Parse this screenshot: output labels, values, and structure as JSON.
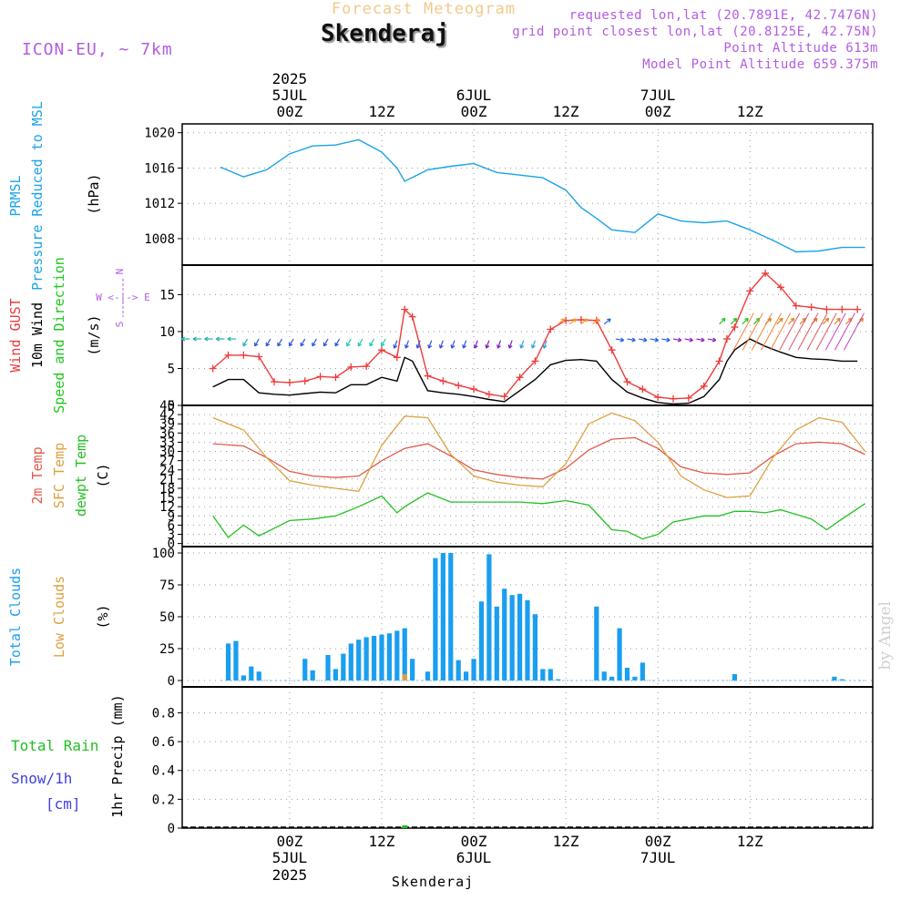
{
  "header": {
    "title": "Forecast Meteogram",
    "station": "Skenderaj",
    "model": "ICON-EU, ~ 7km",
    "requested": "requested lon,lat (20.7891E, 42.7476N)",
    "gridpoint": "grid point closest lon,lat (20.8125E, 42.75N)",
    "point_altitude": "Point Altitude 613m",
    "model_altitude": "Model Point Altitude 659.375m"
  },
  "signature": "by Angel",
  "colors": {
    "pressure": "#1aa3e8",
    "gust": "#ee3b3b",
    "wind": "#000000",
    "arrows": "#1ec81e",
    "t2m": "#e05a4a",
    "tsfc": "#dca040",
    "dewpt": "#22c022",
    "clouds": "#1a9ef0",
    "low_clouds": "#dca040",
    "rain": "#22c022",
    "snow": "#4040e0",
    "label_purple": "#b35ce0"
  },
  "time_axis": {
    "top_row1": [
      "2025"
    ],
    "top_row2": [
      "5JUL",
      "6JUL",
      "7JUL"
    ],
    "top_row3": [
      "00Z",
      "12Z",
      "00Z",
      "12Z",
      "00Z",
      "12Z"
    ],
    "bottom_row1": [
      "00Z",
      "12Z",
      "00Z",
      "12Z",
      "00Z",
      "12Z"
    ],
    "bottom_row2": [
      "5JUL",
      "6JUL",
      "7JUL"
    ],
    "bottom_row3": [
      "2025"
    ],
    "footer": "Skenderaj"
  },
  "panel_labels": {
    "pressure": [
      "PRMSL",
      "Pressure Reduced to MSL"
    ],
    "pressure_unit": "(hPa)",
    "wind": [
      "Wind GUST",
      "10m Wind",
      "Speed and Direction"
    ],
    "wind_unit": "(m/s)",
    "compass": [
      "N",
      "W <-|-> E",
      "S"
    ],
    "temp": [
      "2m Temp",
      "SFC Temp",
      "dewpt Temp"
    ],
    "temp_unit": "(C)",
    "clouds": [
      "Total Clouds",
      "Low Clouds"
    ],
    "clouds_unit": "(%)",
    "precip": [
      "Total  Rain",
      "Snow/1h",
      "[cm]"
    ],
    "precip_unit": "1hr Precip (mm)"
  },
  "chart_data": [
    {
      "type": "line",
      "name": "pressure",
      "ylabel": "(hPa)",
      "ylim": [
        1005,
        1021
      ],
      "yticks": [
        "1008",
        "1012",
        "1016",
        "1020"
      ],
      "series": [
        {
          "name": "PRMSL",
          "x": [
            -9,
            -6,
            -3,
            0,
            3,
            6,
            9,
            12,
            14,
            15,
            18,
            21,
            24,
            27,
            30,
            33,
            36,
            38,
            40,
            42,
            45,
            48,
            51,
            54,
            57,
            60,
            63,
            66,
            69,
            72,
            75
          ],
          "y": [
            1016.1,
            1015.0,
            1015.8,
            1017.6,
            1018.5,
            1018.6,
            1019.2,
            1017.8,
            1016.0,
            1014.5,
            1015.8,
            1016.2,
            1016.5,
            1015.5,
            1015.2,
            1014.9,
            1013.5,
            1011.5,
            1010.3,
            1009.0,
            1008.7,
            1010.8,
            1010.0,
            1009.8,
            1010.0,
            1009.0,
            1007.8,
            1006.5,
            1006.6,
            1007.0,
            1007.0
          ]
        }
      ]
    },
    {
      "type": "line",
      "name": "wind",
      "ylabel": "(m/s)",
      "ylim": [
        0,
        19
      ],
      "yticks": [
        "0",
        "5",
        "10",
        "15"
      ],
      "series": [
        {
          "name": "Wind GUST",
          "x": [
            -10,
            -8,
            -6,
            -4,
            -2,
            0,
            2,
            4,
            6,
            8,
            10,
            12,
            14,
            15,
            16,
            18,
            20,
            22,
            24,
            26,
            28,
            30,
            32,
            34,
            36,
            38,
            40,
            42,
            44,
            46,
            48,
            50,
            52,
            54,
            56,
            57,
            58,
            60,
            62,
            64,
            66,
            68,
            70,
            72,
            74
          ],
          "y": [
            5.0,
            6.8,
            6.8,
            6.6,
            3.2,
            3.1,
            3.3,
            3.9,
            3.8,
            5.2,
            5.3,
            7.5,
            6.5,
            13.0,
            12.0,
            4.0,
            3.3,
            2.7,
            2.2,
            1.5,
            1.2,
            3.8,
            6.0,
            10.3,
            11.5,
            11.6,
            11.5,
            7.5,
            3.2,
            2.2,
            1.1,
            0.9,
            1.0,
            2.6,
            6.0,
            9.0,
            10.6,
            15.5,
            17.9,
            16.0,
            13.5,
            13.3,
            13.0,
            13.0,
            13.0
          ]
        },
        {
          "name": "10m Wind",
          "x": [
            -10,
            -8,
            -6,
            -4,
            -2,
            0,
            2,
            4,
            6,
            8,
            10,
            12,
            14,
            15,
            16,
            18,
            20,
            22,
            24,
            26,
            28,
            30,
            32,
            34,
            36,
            38,
            40,
            42,
            44,
            46,
            48,
            50,
            52,
            54,
            56,
            57,
            58,
            60,
            62,
            64,
            66,
            68,
            70,
            72,
            74
          ],
          "y": [
            2.5,
            3.5,
            3.5,
            1.7,
            1.5,
            1.4,
            1.6,
            1.8,
            1.7,
            2.8,
            2.8,
            3.8,
            3.3,
            6.5,
            6.0,
            2.0,
            1.7,
            1.5,
            1.2,
            0.8,
            0.5,
            2.0,
            3.5,
            5.5,
            6.1,
            6.2,
            6.0,
            3.5,
            1.8,
            1.0,
            0.4,
            0.2,
            0.3,
            1.2,
            3.5,
            6.0,
            7.5,
            9.0,
            8.0,
            7.2,
            6.5,
            6.3,
            6.2,
            6.0,
            6.0
          ]
        }
      ]
    },
    {
      "type": "line",
      "name": "temperature",
      "ylabel": "(C)",
      "ylim": [
        -1,
        45
      ],
      "yticks": [
        "0",
        "3",
        "6",
        "9",
        "12",
        "15",
        "18",
        "21",
        "24",
        "27",
        "30",
        "33",
        "36",
        "39",
        "42",
        "45"
      ],
      "series": [
        {
          "name": "2m Temp",
          "x": [
            -10,
            -6,
            -3,
            0,
            3,
            6,
            9,
            12,
            15,
            18,
            21,
            24,
            27,
            30,
            33,
            36,
            39,
            42,
            45,
            48,
            51,
            54,
            57,
            60,
            63,
            66,
            69,
            72,
            75
          ],
          "y": [
            32.5,
            31.8,
            28.0,
            23.5,
            22.0,
            21.5,
            22.0,
            27.0,
            31.0,
            32.5,
            28.5,
            24.0,
            22.5,
            21.5,
            21.0,
            24.5,
            30.5,
            34.0,
            34.5,
            31.0,
            25.0,
            23.0,
            22.5,
            23.0,
            28.5,
            32.5,
            33.0,
            32.5,
            29.0
          ]
        },
        {
          "name": "SFC Temp",
          "x": [
            -10,
            -6,
            -3,
            0,
            3,
            6,
            9,
            12,
            15,
            18,
            21,
            24,
            27,
            30,
            33,
            36,
            39,
            42,
            45,
            48,
            51,
            54,
            57,
            60,
            63,
            66,
            69,
            72,
            75
          ],
          "y": [
            41.0,
            37.0,
            28.0,
            20.5,
            19.0,
            18.0,
            17.0,
            32.0,
            41.5,
            41.0,
            29.0,
            22.0,
            20.0,
            19.0,
            18.5,
            26.0,
            39.0,
            42.5,
            40.0,
            33.0,
            22.0,
            17.5,
            15.0,
            15.5,
            28.0,
            37.0,
            41.0,
            39.5,
            30.0
          ]
        },
        {
          "name": "dewpt Temp",
          "x": [
            -10,
            -8,
            -6,
            -4,
            -2,
            0,
            3,
            6,
            9,
            12,
            14,
            15,
            18,
            21,
            24,
            27,
            30,
            33,
            36,
            39,
            42,
            44,
            46,
            48,
            50,
            52,
            54,
            56,
            58,
            60,
            62,
            64,
            66,
            68,
            70,
            72,
            75
          ],
          "y": [
            9.0,
            2.0,
            6.0,
            2.5,
            5.0,
            7.5,
            8.0,
            9.0,
            12.0,
            15.5,
            10.0,
            12.0,
            16.5,
            13.5,
            13.5,
            13.5,
            13.5,
            13.0,
            14.0,
            12.5,
            4.5,
            4.0,
            1.5,
            3.0,
            7.0,
            8.0,
            9.0,
            9.0,
            10.5,
            10.5,
            10.0,
            11.0,
            9.5,
            8.0,
            4.5,
            8.0,
            13.0
          ]
        }
      ]
    },
    {
      "type": "bar",
      "name": "clouds",
      "ylabel": "(%)",
      "ylim": [
        -5,
        105
      ],
      "yticks": [
        "0",
        "25",
        "50",
        "75",
        "100"
      ],
      "series": [
        {
          "name": "Total Clouds",
          "x": [
            -8,
            -7,
            -6,
            -5,
            -4,
            -3,
            -2,
            -1,
            0,
            1,
            2,
            3,
            4,
            5,
            6,
            7,
            8,
            9,
            10,
            11,
            12,
            13,
            14,
            15,
            16,
            17,
            18,
            19,
            20,
            21,
            22,
            23,
            24,
            25,
            26,
            27,
            28,
            29,
            30,
            31,
            32,
            33,
            34,
            35,
            36,
            37,
            38,
            39,
            40,
            41,
            42,
            43,
            44,
            45,
            46,
            47,
            48,
            49,
            50,
            51,
            52,
            53,
            54,
            55,
            56,
            57,
            58,
            59,
            60,
            61,
            62,
            63,
            64,
            65,
            66,
            67,
            68,
            69,
            70,
            71,
            72
          ],
          "y": [
            29,
            31,
            4,
            11,
            7,
            0,
            0,
            0,
            0,
            0,
            17,
            8,
            0,
            20,
            9,
            21,
            29,
            32,
            34,
            35,
            36,
            37,
            39,
            41,
            17,
            0,
            7,
            96,
            100,
            100,
            16,
            7,
            17,
            62,
            99,
            58,
            72,
            67,
            68,
            63,
            52,
            9,
            9,
            1,
            0,
            0,
            0,
            0,
            58,
            7,
            3,
            41,
            10,
            3,
            14,
            0,
            0,
            0,
            0,
            0,
            0,
            0,
            0,
            0,
            0,
            0,
            5,
            0,
            0,
            0,
            0,
            0,
            0,
            0,
            0,
            0,
            0,
            0,
            0,
            3,
            1
          ]
        },
        {
          "name": "Low Clouds",
          "x": [
            15
          ],
          "y": [
            5
          ]
        }
      ]
    },
    {
      "type": "bar",
      "name": "precipitation",
      "ylabel": "1hr Precip (mm)",
      "ylim": [
        0,
        0.98
      ],
      "yticks": [
        "0",
        "0.2",
        "0.4",
        "0.6",
        "0.8"
      ],
      "series": [
        {
          "name": "Total Rain",
          "x": [
            15
          ],
          "y": [
            0.005
          ]
        }
      ]
    }
  ]
}
